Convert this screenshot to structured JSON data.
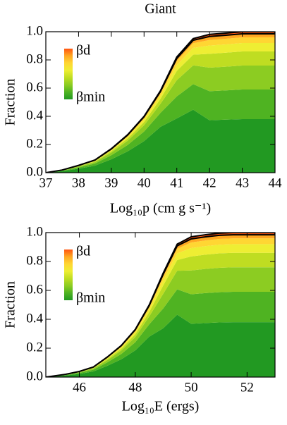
{
  "chart_data": [
    {
      "type": "area",
      "stacked": true,
      "title": "Giant",
      "ylabel": "Fraction",
      "xlabel": "Log₁₀p (cm g s⁻¹)",
      "colorbar": {
        "top": "βd",
        "bottom": "βmin"
      },
      "x": [
        37,
        37.5,
        38,
        38.5,
        39,
        39.5,
        40,
        40.5,
        41,
        41.5,
        42,
        42.5,
        43,
        43.5,
        44
      ],
      "xlim": [
        37,
        44
      ],
      "xticks": [
        37,
        38,
        39,
        40,
        41,
        42,
        43,
        44
      ],
      "ylim": [
        0,
        1
      ],
      "yticks": [
        {
          "value": 0,
          "label": "0.0"
        },
        0.2,
        0.4,
        0.6,
        0.8,
        {
          "value": 1,
          "label": "1.0"
        }
      ],
      "series": [
        {
          "color": "#229922",
          "values": [
            0,
            0.011,
            0.028,
            0.05,
            0.095,
            0.151,
            0.224,
            0.325,
            0.385,
            0.447,
            0.372,
            0.376,
            0.38,
            0.38,
            0.38
          ]
        },
        {
          "color": "#4fb322",
          "values": [
            0,
            0.003,
            0.009,
            0.015,
            0.029,
            0.046,
            0.068,
            0.099,
            0.156,
            0.181,
            0.206,
            0.208,
            0.21,
            0.21,
            0.21
          ]
        },
        {
          "color": "#8ccc22",
          "values": [
            0,
            0.002,
            0.006,
            0.01,
            0.019,
            0.03,
            0.044,
            0.064,
            0.115,
            0.133,
            0.167,
            0.168,
            0.17,
            0.17,
            0.17
          ]
        },
        {
          "color": "#bfdd22",
          "values": [
            0,
            0.001,
            0.003,
            0.005,
            0.01,
            0.016,
            0.024,
            0.035,
            0.066,
            0.076,
            0.098,
            0.099,
            0.1,
            0.1,
            0.1
          ]
        },
        {
          "color": "#eeee33",
          "values": [
            0,
            0.001,
            0.002,
            0.004,
            0.007,
            0.011,
            0.016,
            0.023,
            0.041,
            0.048,
            0.059,
            0.059,
            0.06,
            0.06,
            0.06
          ]
        },
        {
          "color": "#ffd633",
          "values": [
            0,
            0.001,
            0.002,
            0.003,
            0.005,
            0.008,
            0.012,
            0.017,
            0.029,
            0.033,
            0.039,
            0.04,
            0.04,
            0.04,
            0.04
          ]
        },
        {
          "color": "#ffa822",
          "values": [
            0,
            0,
            0.001,
            0.002,
            0.003,
            0.005,
            0.008,
            0.012,
            0.018,
            0.021,
            0.025,
            0.025,
            0.025,
            0.025,
            0.025
          ]
        },
        {
          "color": "#ff5511",
          "values": [
            0,
            0,
            0.001,
            0.001,
            0.002,
            0.003,
            0.004,
            0.006,
            0.011,
            0.012,
            0.015,
            0.015,
            0.015,
            0.015,
            0.015
          ]
        }
      ]
    },
    {
      "type": "area",
      "stacked": true,
      "ylabel": "Fraction",
      "xlabel": "Log₁₀E (ergs)",
      "colorbar": {
        "top": "βd",
        "bottom": "βmin"
      },
      "x": [
        44.8,
        45.5,
        46,
        46.5,
        47,
        47.5,
        48,
        48.5,
        49,
        49.5,
        50,
        50.5,
        51,
        51.5,
        52,
        52.5,
        53
      ],
      "xlim": [
        44.8,
        53
      ],
      "xticks": [
        46,
        48,
        50,
        52
      ],
      "ylim": [
        0,
        1
      ],
      "yticks": [
        {
          "value": 0,
          "label": "0.0"
        },
        0.2,
        0.4,
        0.6,
        0.8,
        {
          "value": 1,
          "label": "1.0"
        }
      ],
      "series": [
        {
          "color": "#229922",
          "values": [
            0,
            0.011,
            0.022,
            0.039,
            0.078,
            0.123,
            0.185,
            0.28,
            0.338,
            0.432,
            0.369,
            0.374,
            0.378,
            0.38,
            0.38,
            0.38,
            0.38
          ]
        },
        {
          "color": "#4fb322",
          "values": [
            0,
            0.003,
            0.007,
            0.012,
            0.024,
            0.037,
            0.056,
            0.085,
            0.137,
            0.175,
            0.204,
            0.207,
            0.209,
            0.21,
            0.21,
            0.21,
            0.21
          ]
        },
        {
          "color": "#8ccc22",
          "values": [
            0,
            0.002,
            0.004,
            0.008,
            0.015,
            0.024,
            0.036,
            0.055,
            0.101,
            0.129,
            0.165,
            0.167,
            0.169,
            0.17,
            0.17,
            0.17,
            0.17
          ]
        },
        {
          "color": "#bfdd22",
          "values": [
            0,
            0.001,
            0.002,
            0.004,
            0.008,
            0.013,
            0.02,
            0.03,
            0.058,
            0.074,
            0.097,
            0.099,
            0.1,
            0.1,
            0.1,
            0.1,
            0.1
          ]
        },
        {
          "color": "#eeee33",
          "values": [
            0,
            0.001,
            0.002,
            0.003,
            0.006,
            0.009,
            0.013,
            0.02,
            0.036,
            0.046,
            0.058,
            0.059,
            0.06,
            0.06,
            0.06,
            0.06,
            0.06
          ]
        },
        {
          "color": "#ffd633",
          "values": [
            0,
            0.001,
            0.001,
            0.002,
            0.004,
            0.007,
            0.01,
            0.015,
            0.025,
            0.032,
            0.039,
            0.039,
            0.04,
            0.04,
            0.04,
            0.04,
            0.04
          ]
        },
        {
          "color": "#ffa822",
          "values": [
            0,
            0,
            0.001,
            0.001,
            0.003,
            0.004,
            0.007,
            0.01,
            0.016,
            0.02,
            0.024,
            0.025,
            0.025,
            0.025,
            0.025,
            0.025,
            0.025
          ]
        },
        {
          "color": "#ff5511",
          "values": [
            0,
            0,
            0,
            0.001,
            0.001,
            0.002,
            0.003,
            0.005,
            0.009,
            0.012,
            0.015,
            0.015,
            0.015,
            0.015,
            0.015,
            0.015,
            0.015
          ]
        }
      ]
    }
  ]
}
